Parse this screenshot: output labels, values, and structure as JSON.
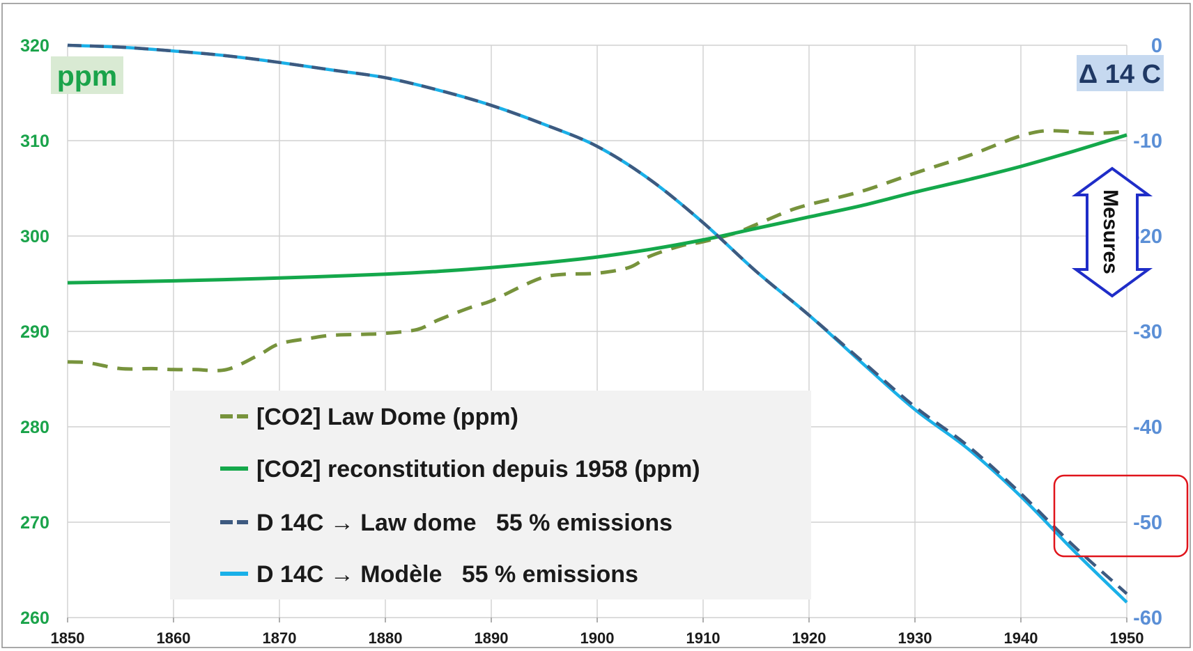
{
  "chart_data": {
    "type": "line",
    "x_axis": {
      "range": [
        1850,
        1950
      ],
      "ticks": [
        "1850",
        "1860",
        "1870",
        "1880",
        "1890",
        "1900",
        "1910",
        "1920",
        "1930",
        "1940",
        "1950"
      ]
    },
    "y_left": {
      "label": "ppm",
      "range": [
        260,
        320
      ],
      "ticks": [
        "260",
        "270",
        "280",
        "290",
        "300",
        "310",
        "320"
      ],
      "color": "#1aa34a"
    },
    "y_right": {
      "label": "Δ 14 C",
      "range": [
        -60,
        0
      ],
      "ticks": [
        "-60",
        "-50",
        "-40",
        "-30",
        "-20",
        "-10",
        "0"
      ],
      "color": "#5b8fd6"
    },
    "grid": true,
    "legend_position": "bottom-left",
    "annotation_arrow": "Mesures",
    "series": [
      {
        "name": "[CO2] Law Dome (ppm)",
        "axis": "left",
        "color": "#77933c",
        "style": "dashed",
        "x": [
          1850,
          1852,
          1855,
          1858,
          1860,
          1862,
          1865,
          1868,
          1870,
          1873,
          1875,
          1878,
          1880,
          1883,
          1885,
          1888,
          1890,
          1893,
          1895,
          1897,
          1900,
          1903,
          1905,
          1908,
          1910,
          1913,
          1915,
          1918,
          1920,
          1925,
          1930,
          1935,
          1938,
          1940,
          1942,
          1944,
          1946,
          1948,
          1950
        ],
        "y": [
          286.8,
          286.7,
          286.1,
          286.1,
          286.0,
          286.0,
          286.0,
          287.5,
          288.7,
          289.3,
          289.6,
          289.7,
          289.8,
          290.2,
          291.2,
          292.5,
          293.2,
          294.8,
          295.7,
          296.0,
          296.1,
          296.7,
          297.9,
          299.0,
          299.4,
          300.3,
          301.2,
          302.6,
          303.3,
          304.7,
          306.6,
          308.4,
          309.7,
          310.5,
          311.0,
          311.0,
          310.8,
          310.8,
          311.0
        ]
      },
      {
        "name": "[CO2] reconstitution depuis 1958 (ppm)",
        "axis": "left",
        "color": "#14a84b",
        "style": "solid",
        "x": [
          1850,
          1860,
          1870,
          1880,
          1885,
          1890,
          1895,
          1900,
          1905,
          1910,
          1915,
          1920,
          1925,
          1930,
          1935,
          1940,
          1945,
          1950
        ],
        "y": [
          295.1,
          295.3,
          295.6,
          296.0,
          296.3,
          296.7,
          297.2,
          297.8,
          298.6,
          299.6,
          300.8,
          302.0,
          303.2,
          304.6,
          305.9,
          307.3,
          308.9,
          310.6
        ]
      },
      {
        "name": "D 14C → Law dome   55 % emissions",
        "axis": "right",
        "color": "#3d5a80",
        "style": "dashed",
        "x": [
          1850,
          1855,
          1860,
          1865,
          1870,
          1875,
          1880,
          1885,
          1890,
          1895,
          1900,
          1905,
          1910,
          1915,
          1920,
          1925,
          1930,
          1935,
          1940,
          1945,
          1950
        ],
        "y": [
          0,
          -0.2,
          -0.6,
          -1.1,
          -1.8,
          -2.6,
          -3.4,
          -4.7,
          -6.3,
          -8.3,
          -10.6,
          -14.1,
          -18.6,
          -23.7,
          -28.3,
          -33.1,
          -37.9,
          -42.0,
          -47.0,
          -52.5,
          -57.5
        ]
      },
      {
        "name": "D 14C → Modèle   55 % emissions",
        "axis": "right",
        "color": "#1ab0e8",
        "style": "solid",
        "x": [
          1850,
          1855,
          1860,
          1865,
          1870,
          1875,
          1880,
          1885,
          1890,
          1895,
          1900,
          1905,
          1910,
          1915,
          1920,
          1925,
          1930,
          1935,
          1940,
          1945,
          1950
        ],
        "y": [
          0,
          -0.2,
          -0.6,
          -1.1,
          -1.8,
          -2.6,
          -3.4,
          -4.7,
          -6.3,
          -8.3,
          -10.6,
          -14.1,
          -18.6,
          -23.7,
          -28.3,
          -33.3,
          -38.2,
          -42.3,
          -47.3,
          -53.0,
          -58.4
        ]
      }
    ]
  }
}
